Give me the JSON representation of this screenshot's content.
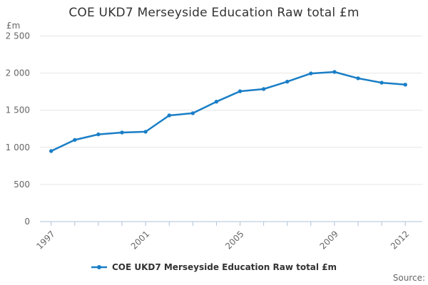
{
  "title": "COE UKD7 Merseyside Education Raw total £m",
  "y_axis_unit_label": "£m",
  "source_label": "Source:",
  "legend": {
    "label": "COE UKD7 Merseyside Education Raw total £m"
  },
  "colors": {
    "series": "#1a7ec6",
    "grid": "#e6e6e6",
    "axis": "#afc3d8",
    "tick_text": "#666666",
    "title_text": "#333333",
    "legend_text": "#333333",
    "source_text": "#666666",
    "background": "#ffffff"
  },
  "chart_data": {
    "type": "line",
    "title": "COE UKD7 Merseyside Education Raw total £m",
    "xlabel": "",
    "ylabel": "£m",
    "x": [
      1997,
      1998,
      1999,
      2000,
      2001,
      2002,
      2003,
      2004,
      2005,
      2006,
      2007,
      2008,
      2009,
      2010,
      2011,
      2012
    ],
    "series": [
      {
        "name": "COE UKD7 Merseyside Education Raw total £m",
        "values": [
          950,
          1100,
          1175,
          1200,
          1210,
          1430,
          1460,
          1615,
          1755,
          1785,
          1885,
          1995,
          2015,
          1930,
          1870,
          1845
        ]
      }
    ],
    "ylim": [
      0,
      2500
    ],
    "ytick_interval": 500,
    "ytick_labels": [
      "0",
      "500",
      "1 000",
      "1 500",
      "2 000",
      "2 500"
    ],
    "xtick_labels_shown": [
      "1997",
      "2001",
      "2005",
      "2009",
      "2012"
    ],
    "grid": "horizontal",
    "legend_position": "bottom",
    "marker": "round",
    "source": "Source:"
  }
}
